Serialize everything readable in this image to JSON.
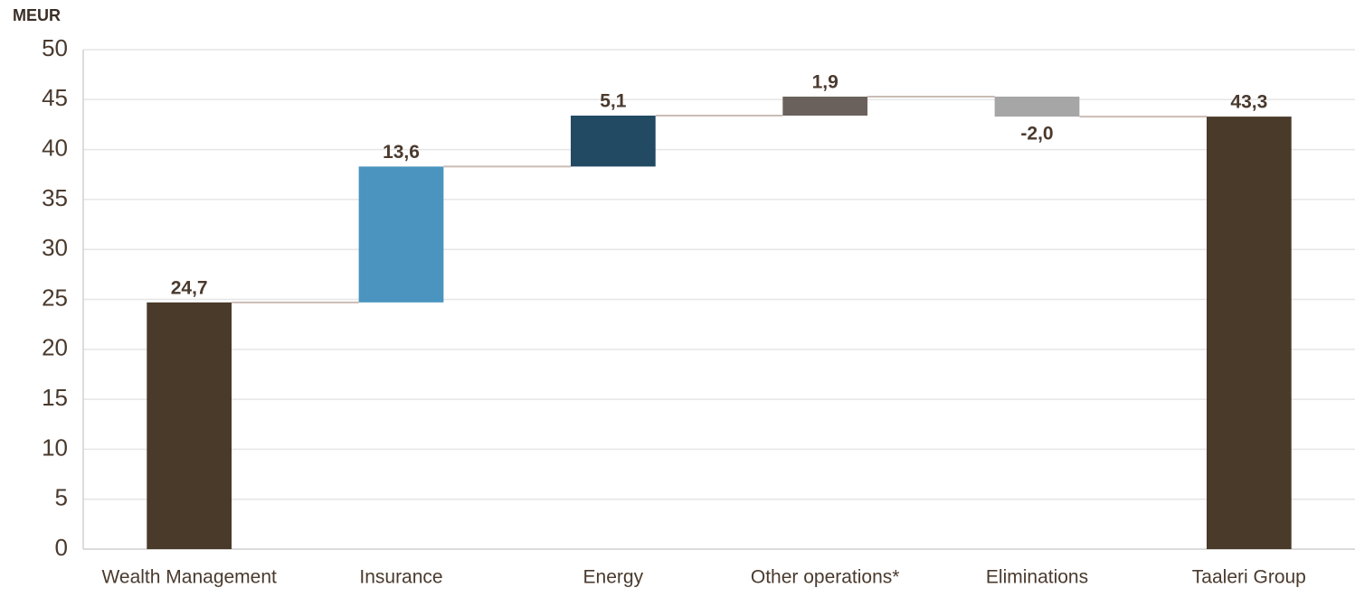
{
  "chart_data": {
    "type": "waterfall",
    "y_label": "MEUR",
    "categories": [
      "Wealth Management",
      "Insurance",
      "Energy",
      "Other operations*",
      "Eliminations",
      "Taaleri Group"
    ],
    "values": [
      24.7,
      13.6,
      5.1,
      1.9,
      -2.0,
      43.3
    ],
    "value_labels": [
      "24,7",
      "13,6",
      "5,1",
      "1,9",
      "-2,0",
      "43,3"
    ],
    "is_total": [
      false,
      false,
      false,
      false,
      false,
      true
    ],
    "colors": [
      "#4a3a2a",
      "#4a94bf",
      "#234a63",
      "#6b615c",
      "#a6a6a6",
      "#4a3a2a"
    ],
    "ylim": [
      0,
      50
    ],
    "yticks": [
      0,
      5,
      10,
      15,
      20,
      25,
      30,
      35,
      40,
      45,
      50
    ],
    "grid": true
  }
}
